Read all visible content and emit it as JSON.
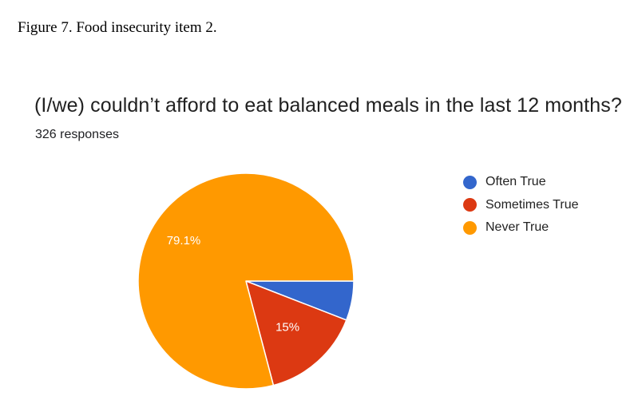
{
  "figure_caption": "Figure 7.  Food insecurity item 2.",
  "chart_data": {
    "type": "pie",
    "title": "(I/we) couldn’t afford to eat balanced meals in the last 12 months?",
    "subtitle": "326 responses",
    "legend_position": "right",
    "slices": [
      {
        "label": "Often True",
        "value": 5.9,
        "color": "#3366cc",
        "data_label": ""
      },
      {
        "label": "Sometimes True",
        "value": 15.0,
        "color": "#dc3912",
        "data_label": "15%"
      },
      {
        "label": "Never True",
        "value": 79.1,
        "color": "#ff9900",
        "data_label": "79.1%"
      }
    ]
  }
}
